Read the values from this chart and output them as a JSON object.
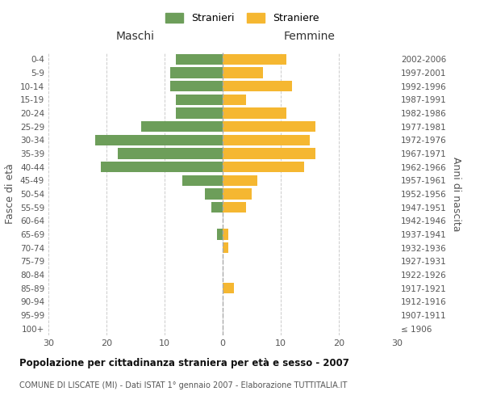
{
  "age_groups": [
    "100+",
    "95-99",
    "90-94",
    "85-89",
    "80-84",
    "75-79",
    "70-74",
    "65-69",
    "60-64",
    "55-59",
    "50-54",
    "45-49",
    "40-44",
    "35-39",
    "30-34",
    "25-29",
    "20-24",
    "15-19",
    "10-14",
    "5-9",
    "0-4"
  ],
  "birth_years": [
    "≤ 1906",
    "1907-1911",
    "1912-1916",
    "1917-1921",
    "1922-1926",
    "1927-1931",
    "1932-1936",
    "1937-1941",
    "1942-1946",
    "1947-1951",
    "1952-1956",
    "1957-1961",
    "1962-1966",
    "1967-1971",
    "1972-1976",
    "1977-1981",
    "1982-1986",
    "1987-1991",
    "1992-1996",
    "1997-2001",
    "2002-2006"
  ],
  "maschi": [
    0,
    0,
    0,
    0,
    0,
    0,
    0,
    1,
    0,
    2,
    3,
    7,
    21,
    18,
    22,
    14,
    8,
    8,
    9,
    9,
    8
  ],
  "femmine": [
    0,
    0,
    0,
    2,
    0,
    0,
    1,
    1,
    0,
    4,
    5,
    6,
    14,
    16,
    15,
    16,
    11,
    4,
    12,
    7,
    11
  ],
  "maschi_color": "#6d9e5a",
  "femmine_color": "#f5b731",
  "title": "Popolazione per cittadinanza straniera per età e sesso - 2007",
  "subtitle": "COMUNE DI LISCATE (MI) - Dati ISTAT 1° gennaio 2007 - Elaborazione TUTTITALIA.IT",
  "xlabel_left": "Maschi",
  "xlabel_right": "Femmine",
  "ylabel_left": "Fasce di età",
  "ylabel_right": "Anni di nascita",
  "legend_maschi": "Stranieri",
  "legend_femmine": "Straniere",
  "xlim": 30,
  "background_color": "#ffffff",
  "grid_color": "#cccccc",
  "bar_height": 0.8
}
